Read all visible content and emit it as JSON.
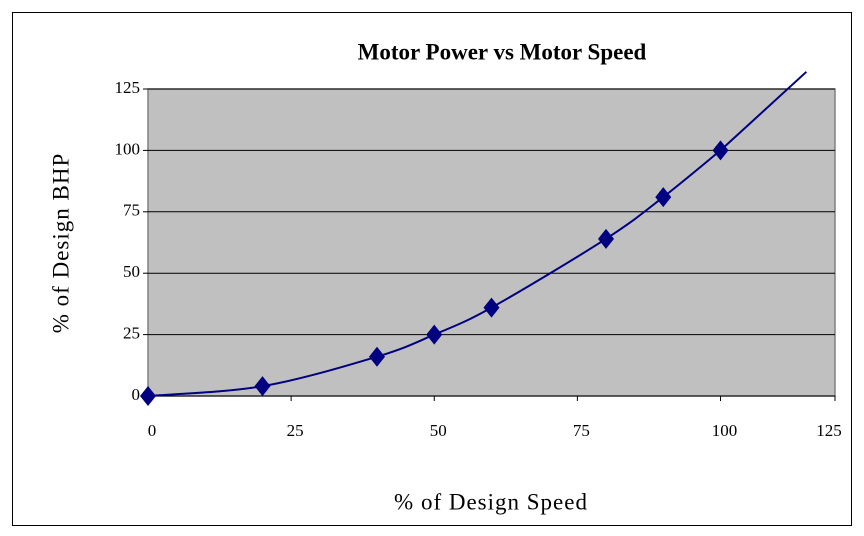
{
  "chart_data": {
    "type": "line",
    "title": "Motor Power  vs  Motor Speed",
    "xlabel": "% of Design Speed",
    "ylabel": "% of Design BHP",
    "series": [
      {
        "color": "#000080",
        "marker": "diamond",
        "x": [
          0,
          20,
          40,
          50,
          60,
          80,
          90,
          100
        ],
        "values": [
          0,
          4,
          16,
          25,
          36,
          64,
          81,
          100
        ]
      },
      {
        "color": "#000080",
        "marker": "none",
        "x": [
          100,
          115
        ],
        "values": [
          100,
          132
        ]
      }
    ],
    "xlim": [
      0,
      120
    ],
    "xticks": [
      0,
      25,
      50,
      75,
      100,
      125
    ],
    "ylim": [
      0,
      125
    ],
    "yticks": [
      0,
      25,
      50,
      75,
      100,
      125
    ],
    "grid": true,
    "plot_background": "#c0c0c0"
  }
}
